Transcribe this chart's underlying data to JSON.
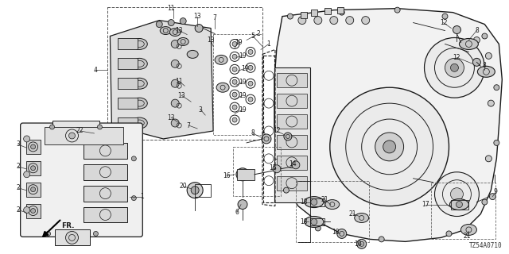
{
  "bg_color": "#ffffff",
  "line_color": "#1a1a1a",
  "diagram_id": "TZ54A0710",
  "fig_width": 6.4,
  "fig_height": 3.2,
  "dpi": 100
}
